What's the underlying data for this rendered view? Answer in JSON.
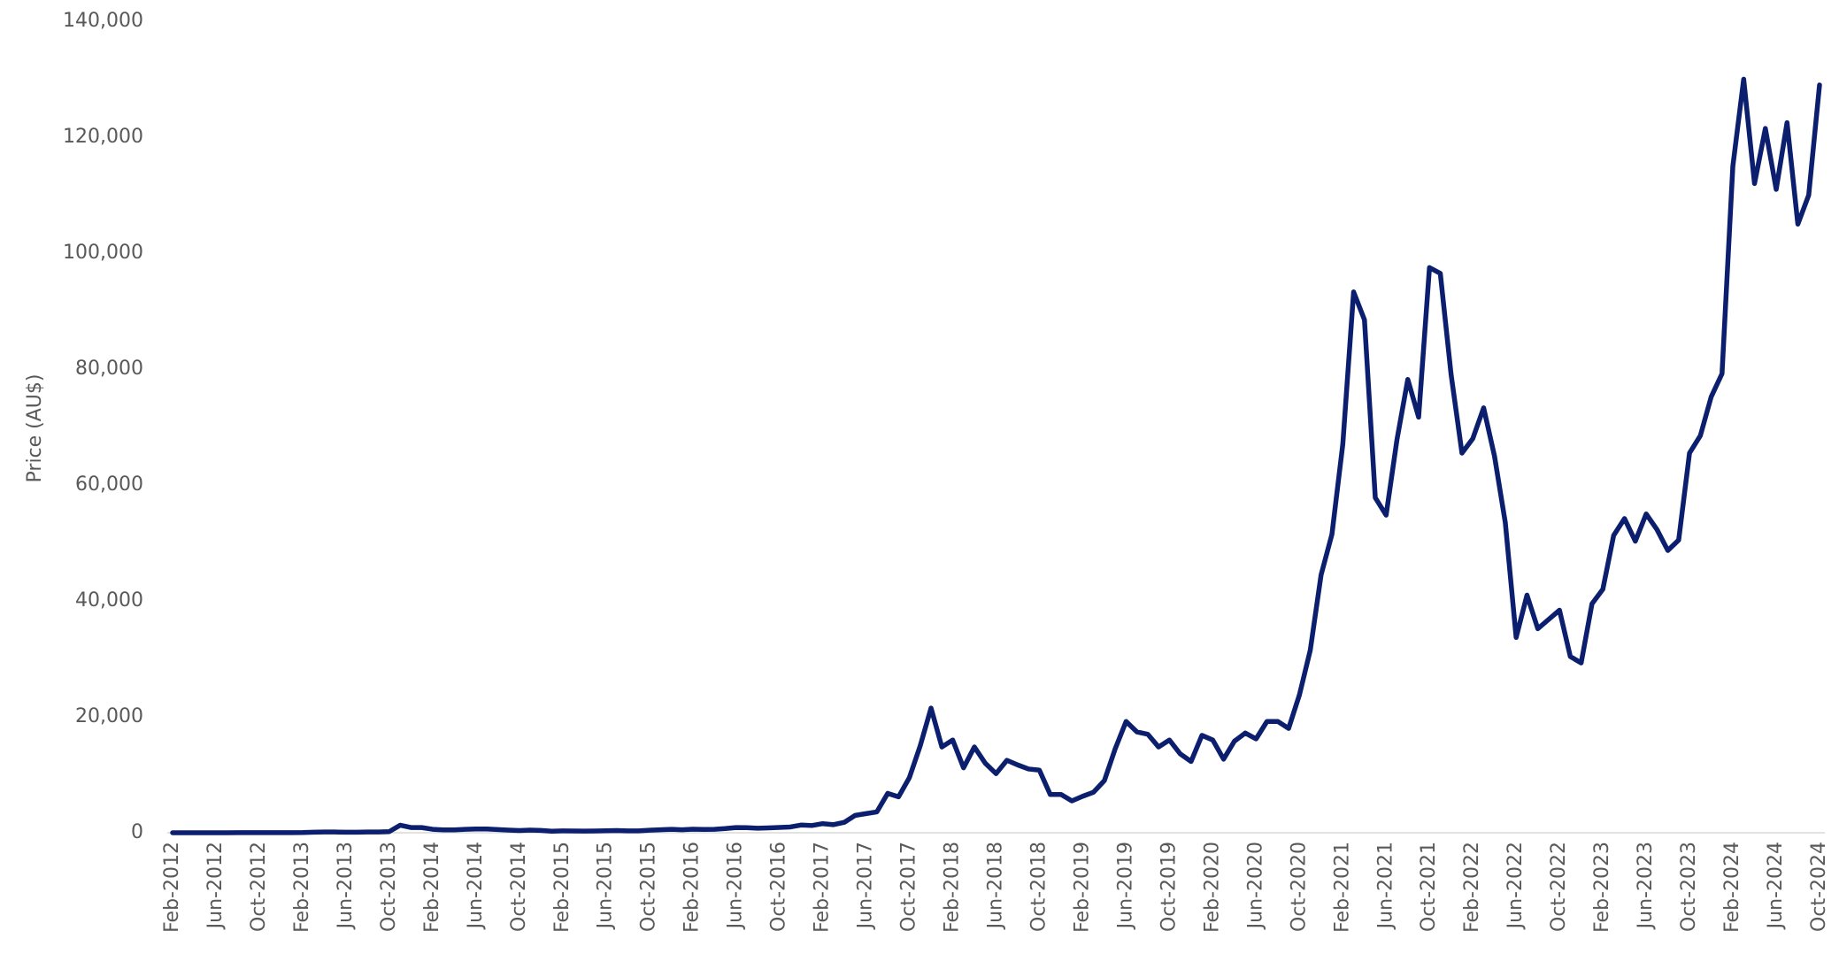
{
  "chart_data": {
    "type": "line",
    "y_label": "Price (AU$)",
    "color": "#0b1f6e",
    "categories": [
      "Feb-2012",
      null,
      null,
      null,
      "Jun-2012",
      null,
      null,
      null,
      "Oct-2012",
      null,
      null,
      null,
      "Feb-2013",
      null,
      null,
      null,
      "Jun-2013",
      null,
      null,
      null,
      "Oct-2013",
      null,
      null,
      null,
      "Feb-2014",
      null,
      null,
      null,
      "Jun-2014",
      null,
      null,
      null,
      "Oct-2014",
      null,
      null,
      null,
      "Feb-2015",
      null,
      null,
      null,
      "Jun-2015",
      null,
      null,
      null,
      "Oct-2015",
      null,
      null,
      null,
      "Feb-2016",
      null,
      null,
      null,
      "Jun-2016",
      null,
      null,
      null,
      "Oct-2016",
      null,
      null,
      null,
      "Feb-2017",
      null,
      null,
      null,
      "Jun-2017",
      null,
      null,
      null,
      "Oct-2017",
      null,
      null,
      null,
      "Feb-2018",
      null,
      null,
      null,
      "Jun-2018",
      null,
      null,
      null,
      "Oct-2018",
      null,
      null,
      null,
      "Feb-2019",
      null,
      null,
      null,
      "Jun-2019",
      null,
      null,
      null,
      "Oct-2019",
      null,
      null,
      null,
      "Feb-2020",
      null,
      null,
      null,
      "Jun-2020",
      null,
      null,
      null,
      "Oct-2020",
      null,
      null,
      null,
      "Feb-2021",
      null,
      null,
      null,
      "Jun-2021",
      null,
      null,
      null,
      "Oct-2021",
      null,
      null,
      null,
      "Feb-2022",
      null,
      null,
      null,
      "Jun-2022",
      null,
      null,
      null,
      "Oct-2022",
      null,
      null,
      null,
      "Feb-2023",
      null,
      null,
      null,
      "Jun-2023",
      null,
      null,
      null,
      "Oct-2023",
      null,
      null,
      null,
      "Feb-2024",
      null,
      null,
      null,
      "Jun-2024",
      null,
      null,
      null,
      "Oct-2024"
    ],
    "values": [
      5,
      5,
      5,
      5,
      6,
      8,
      10,
      12,
      11,
      12,
      13,
      20,
      33,
      90,
      130,
      125,
      100,
      100,
      130,
      135,
      200,
      1300,
      900,
      900,
      600,
      500,
      500,
      600,
      650,
      650,
      550,
      450,
      380,
      450,
      400,
      270,
      320,
      310,
      290,
      300,
      340,
      380,
      320,
      330,
      440,
      520,
      600,
      520,
      610,
      570,
      600,
      720,
      900,
      880,
      780,
      830,
      920,
      1000,
      1330,
      1250,
      1570,
      1400,
      1800,
      3000,
      3300,
      3600,
      6800,
      6200,
      9500,
      15000,
      21500,
      14800,
      16000,
      11200,
      14800,
      12000,
      10200,
      12500,
      11700,
      11000,
      10800,
      6600,
      6600,
      5500,
      6300,
      7000,
      9000,
      14500,
      19200,
      17400,
      17000,
      14800,
      16000,
      13600,
      12300,
      16800,
      16000,
      12700,
      15800,
      17200,
      16200,
      19200,
      19200,
      18000,
      23800,
      31500,
      44500,
      51500,
      67000,
      93300,
      88500,
      57800,
      54800,
      67800,
      78200,
      71700,
      97500,
      96500,
      79000,
      65500,
      68000,
      73300,
      65000,
      53500,
      33700,
      41000,
      35200,
      36800,
      38400,
      30400,
      29300,
      39500,
      42000,
      51300,
      54200,
      50300,
      55000,
      52300,
      48700,
      50500,
      65500,
      68500,
      75200,
      79200,
      115000,
      130000,
      112000,
      121500,
      111000,
      122500,
      105000,
      110000,
      129000
    ],
    "ylim": [
      0,
      140000
    ],
    "yticks": [
      0,
      {
        "value": 20000,
        "label": "20,000"
      },
      {
        "value": 40000,
        "label": "40,000"
      },
      {
        "value": 60000,
        "label": "60,000"
      },
      {
        "value": 80000,
        "label": "80,000"
      },
      {
        "value": 100000,
        "label": "100,000"
      },
      {
        "value": 120000,
        "label": "120,000"
      },
      {
        "value": 140000,
        "label": "140,000"
      }
    ]
  }
}
